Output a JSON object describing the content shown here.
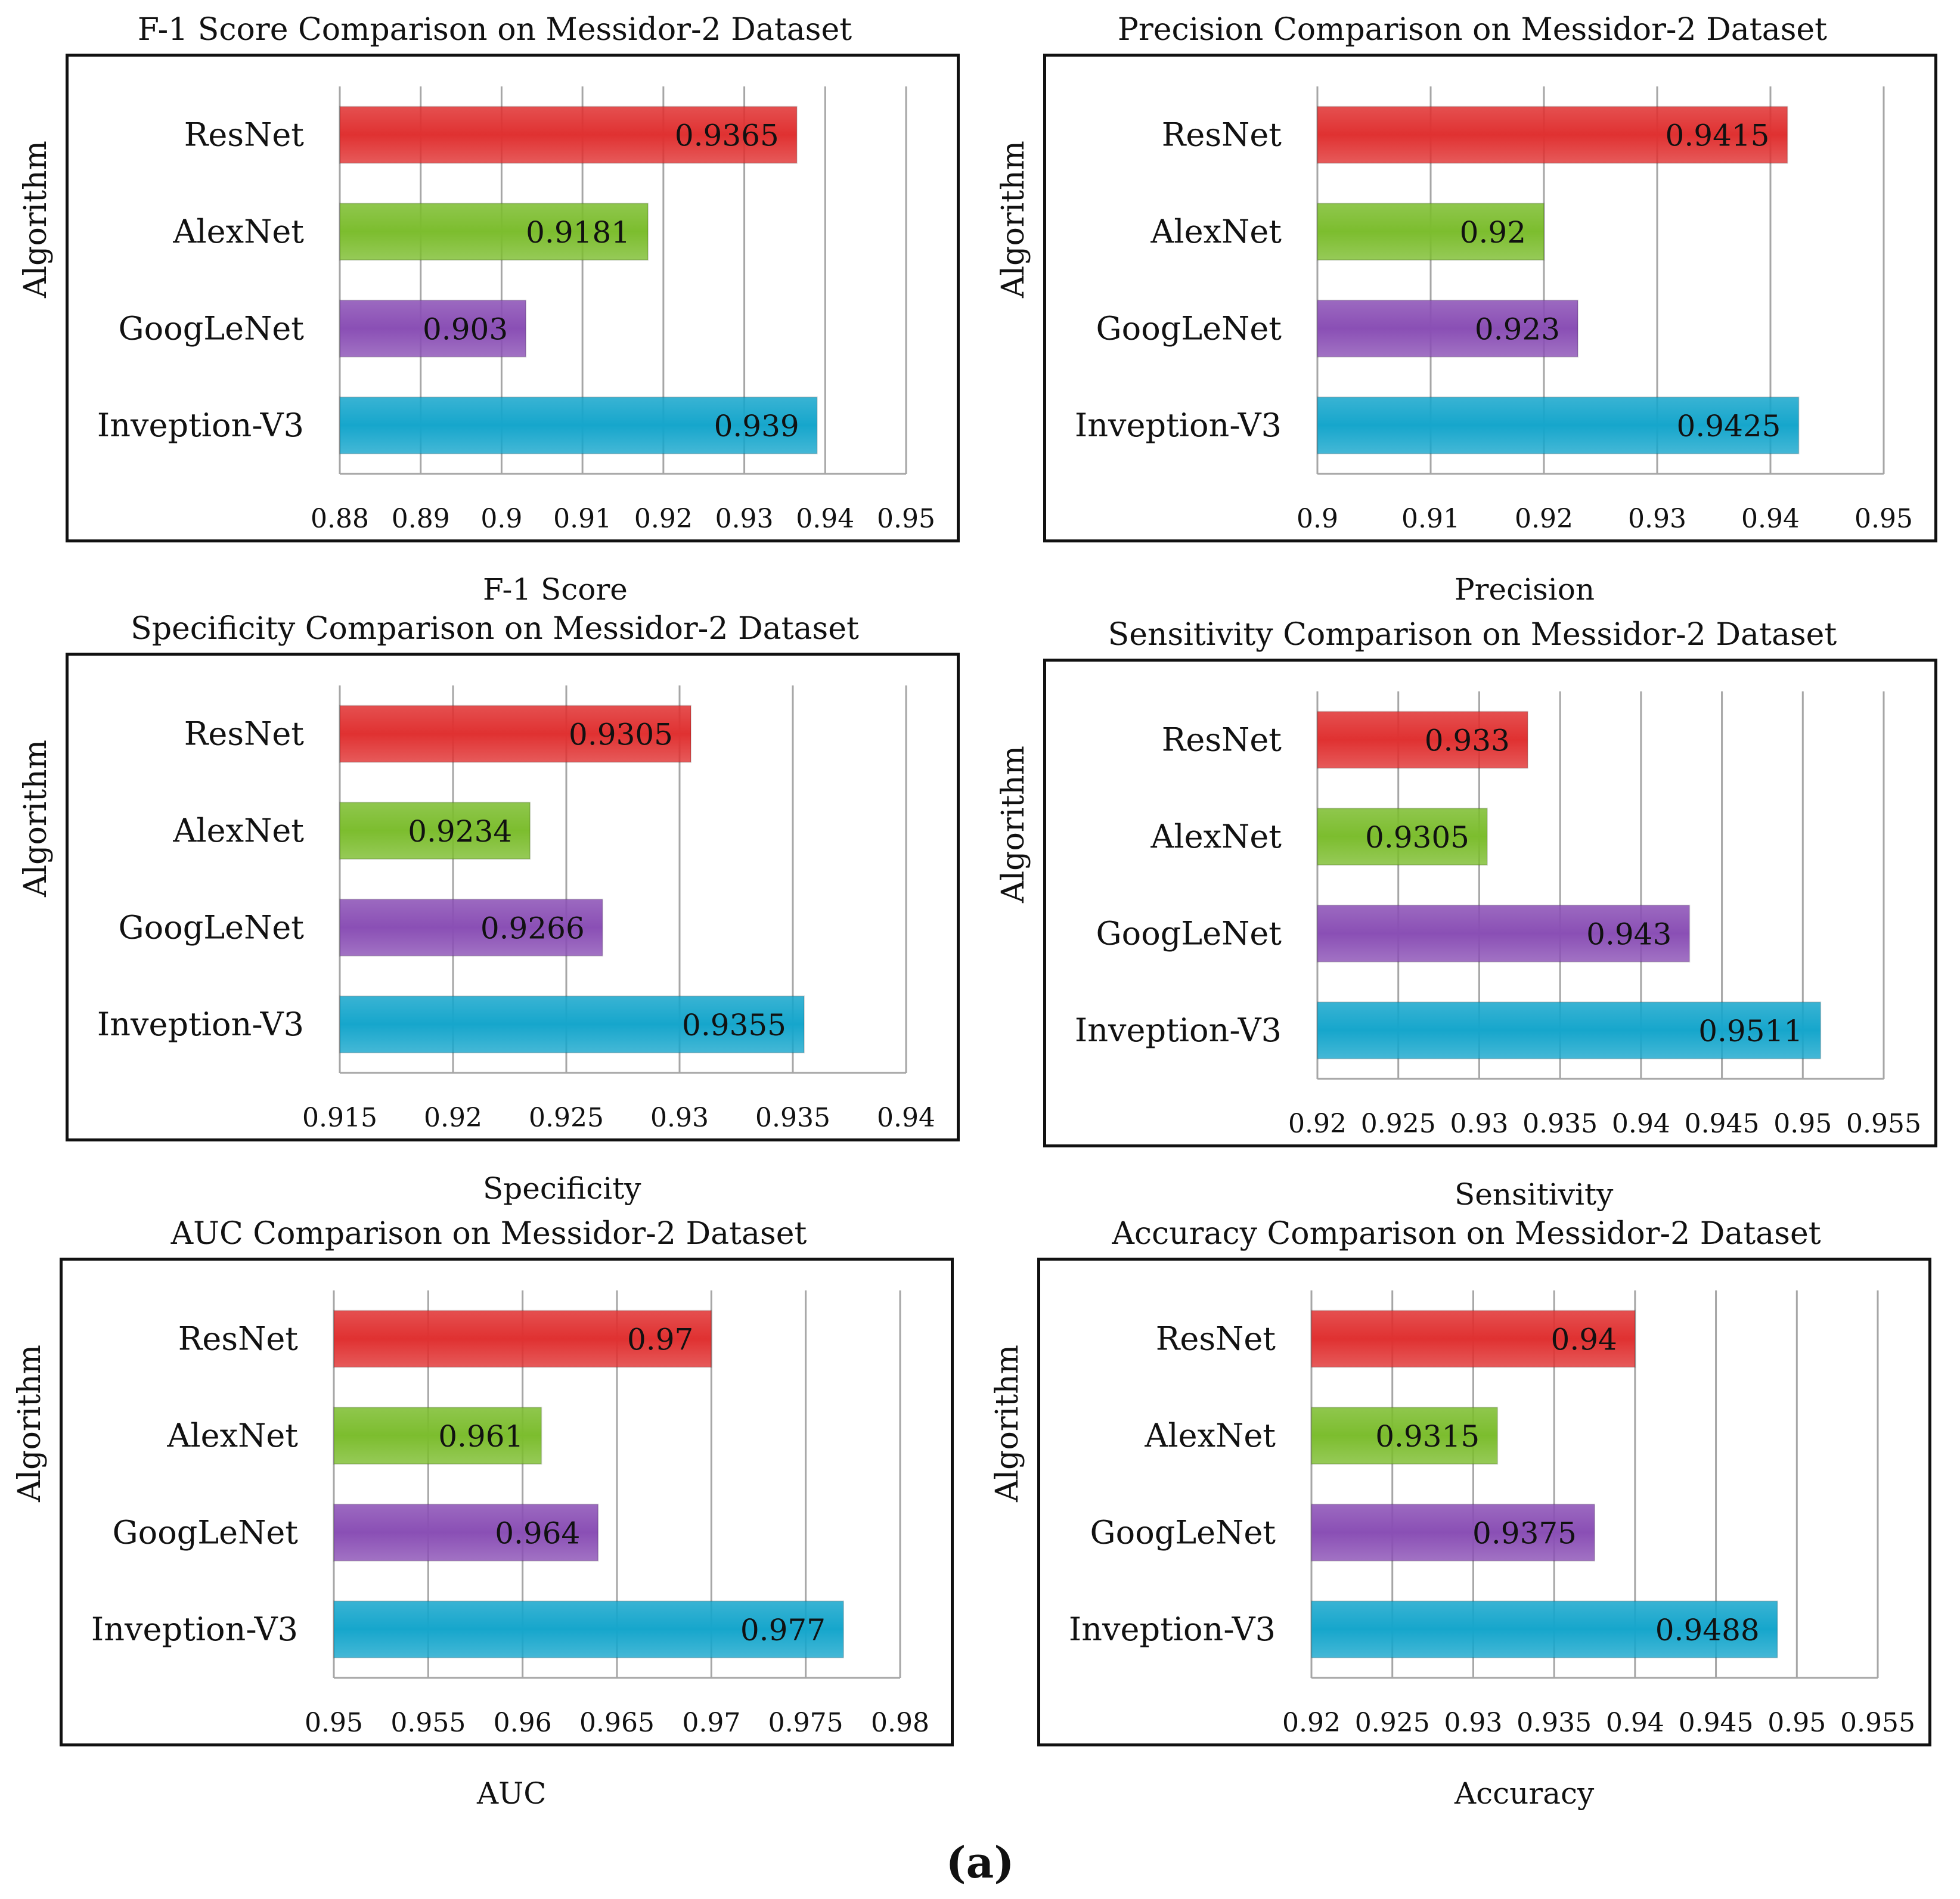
{
  "figure": {
    "caption": "(a)"
  },
  "colors": {
    "ResNet": "#e03131",
    "AlexNet": "#7cbd2e",
    "GoogLeNet": "#8a4fb5",
    "Inveption-V3": "#16a6cc",
    "grid": "#a6a6a6",
    "frame": "#111111"
  },
  "chart_data": [
    {
      "type": "bar",
      "orientation": "horizontal",
      "title": "F-1 Score Comparison on Messidor-2 Dataset",
      "xlabel": "F-1 Score",
      "ylabel": "Algorithm",
      "categories": [
        "ResNet",
        "AlexNet",
        "GoogLeNet",
        "Inveption-V3"
      ],
      "values": [
        0.9365,
        0.9181,
        0.903,
        0.939
      ],
      "value_labels": [
        "0.9365",
        "0.9181",
        "0.903",
        "0.939"
      ],
      "xlim": [
        0.88,
        0.95
      ],
      "ticks": [
        0.88,
        0.89,
        0.9,
        0.91,
        0.92,
        0.93,
        0.94,
        0.95
      ],
      "tick_labels": [
        "0.88",
        "0.89",
        "0.9",
        "0.91",
        "0.92",
        "0.93",
        "0.94",
        "0.95"
      ],
      "grid": true
    },
    {
      "type": "bar",
      "orientation": "horizontal",
      "title": "Precision Comparison on Messidor-2 Dataset",
      "xlabel": "Precision",
      "ylabel": "Algorithm",
      "categories": [
        "ResNet",
        "AlexNet",
        "GoogLeNet",
        "Inveption-V3"
      ],
      "values": [
        0.9415,
        0.92,
        0.923,
        0.9425
      ],
      "value_labels": [
        "0.9415",
        "0.92",
        "0.923",
        "0.9425"
      ],
      "xlim": [
        0.9,
        0.95
      ],
      "ticks": [
        0.9,
        0.91,
        0.92,
        0.93,
        0.94,
        0.95
      ],
      "tick_labels": [
        "0.9",
        "0.91",
        "0.92",
        "0.93",
        "0.94",
        "0.95"
      ],
      "grid": true
    },
    {
      "type": "bar",
      "orientation": "horizontal",
      "title": "Specificity Comparison on Messidor-2 Dataset",
      "xlabel": "Specificity",
      "ylabel": "Algorithm",
      "categories": [
        "ResNet",
        "AlexNet",
        "GoogLeNet",
        "Inveption-V3"
      ],
      "values": [
        0.9305,
        0.9234,
        0.9266,
        0.9355
      ],
      "value_labels": [
        "0.9305",
        "0.9234",
        "0.9266",
        "0.9355"
      ],
      "xlim": [
        0.915,
        0.94
      ],
      "ticks": [
        0.915,
        0.92,
        0.925,
        0.93,
        0.935,
        0.94
      ],
      "tick_labels": [
        "0.915",
        "0.92",
        "0.925",
        "0.93",
        "0.935",
        "0.94"
      ],
      "grid": true
    },
    {
      "type": "bar",
      "orientation": "horizontal",
      "title": "Sensitivity Comparison on Messidor-2 Dataset",
      "xlabel": "Sensitivity",
      "ylabel": "Algorithm",
      "categories": [
        "ResNet",
        "AlexNet",
        "GoogLeNet",
        "Inveption-V3"
      ],
      "values": [
        0.933,
        0.9305,
        0.943,
        0.9511
      ],
      "value_labels": [
        "0.933",
        "0.9305",
        "0.943",
        "0.9511"
      ],
      "xlim": [
        0.92,
        0.955
      ],
      "ticks": [
        0.92,
        0.925,
        0.93,
        0.935,
        0.94,
        0.945,
        0.95,
        0.955
      ],
      "tick_labels": [
        "0.92",
        "0.925",
        "0.93",
        "0.935",
        "0.94",
        "0.945",
        "0.95",
        "0.955"
      ],
      "grid": true
    },
    {
      "type": "bar",
      "orientation": "horizontal",
      "title": "AUC Comparison on Messidor-2 Dataset",
      "xlabel": "AUC",
      "ylabel": "Algorithm",
      "categories": [
        "ResNet",
        "AlexNet",
        "GoogLeNet",
        "Inveption-V3"
      ],
      "values": [
        0.97,
        0.961,
        0.964,
        0.977
      ],
      "value_labels": [
        "0.97",
        "0.961",
        "0.964",
        "0.977"
      ],
      "xlim": [
        0.95,
        0.98
      ],
      "ticks": [
        0.95,
        0.955,
        0.96,
        0.965,
        0.97,
        0.975,
        0.98
      ],
      "tick_labels": [
        "0.95",
        "0.955",
        "0.96",
        "0.965",
        "0.97",
        "0.975",
        "0.98"
      ],
      "grid": true
    },
    {
      "type": "bar",
      "orientation": "horizontal",
      "title": "Accuracy Comparison on Messidor-2 Dataset",
      "xlabel": "Accuracy",
      "ylabel": "Algorithm",
      "categories": [
        "ResNet",
        "AlexNet",
        "GoogLeNet",
        "Inveption-V3"
      ],
      "values": [
        0.94,
        0.9315,
        0.9375,
        0.9488
      ],
      "value_labels": [
        "0.94",
        "0.9315",
        "0.9375",
        "0.9488"
      ],
      "xlim": [
        0.92,
        0.955
      ],
      "ticks": [
        0.92,
        0.925,
        0.93,
        0.935,
        0.94,
        0.945,
        0.95,
        0.955
      ],
      "tick_labels": [
        "0.92",
        "0.925",
        "0.93",
        "0.935",
        "0.94",
        "0.945",
        "0.95",
        "0.955"
      ],
      "grid": true
    }
  ]
}
